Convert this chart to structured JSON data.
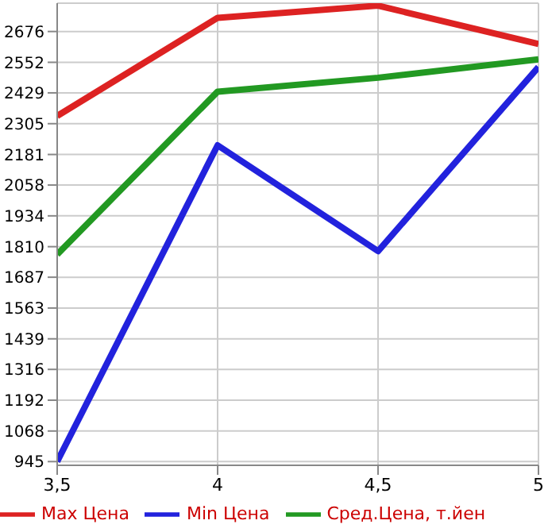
{
  "chart_data": {
    "type": "line",
    "x": [
      3.5,
      4,
      4.5,
      5
    ],
    "series": [
      {
        "name": "Max Цена",
        "color": "#dd2222",
        "values": [
          2336,
          2731,
          2780,
          2626
        ]
      },
      {
        "name": "Min Цена",
        "color": "#2222dd",
        "values": [
          945,
          2218,
          1792,
          2533
        ]
      },
      {
        "name": "Сред.Цена, т.йен",
        "color": "#229922",
        "values": [
          1779,
          2434,
          2490,
          2564
        ]
      }
    ],
    "xlim": [
      3.5,
      5
    ],
    "xticks": [
      {
        "value": 3.5,
        "label": "3,5"
      },
      4,
      {
        "value": 4.5,
        "label": "4,5"
      },
      5
    ],
    "ylim": [
      930,
      2790
    ],
    "yticks": [
      945,
      1068,
      1192,
      1316,
      1439,
      1563,
      1687,
      1810,
      1934,
      2058,
      2181,
      2305,
      2429,
      2552,
      2676
    ],
    "grid": true,
    "legend": "bottom",
    "marker": "none",
    "line_style": "solid"
  }
}
